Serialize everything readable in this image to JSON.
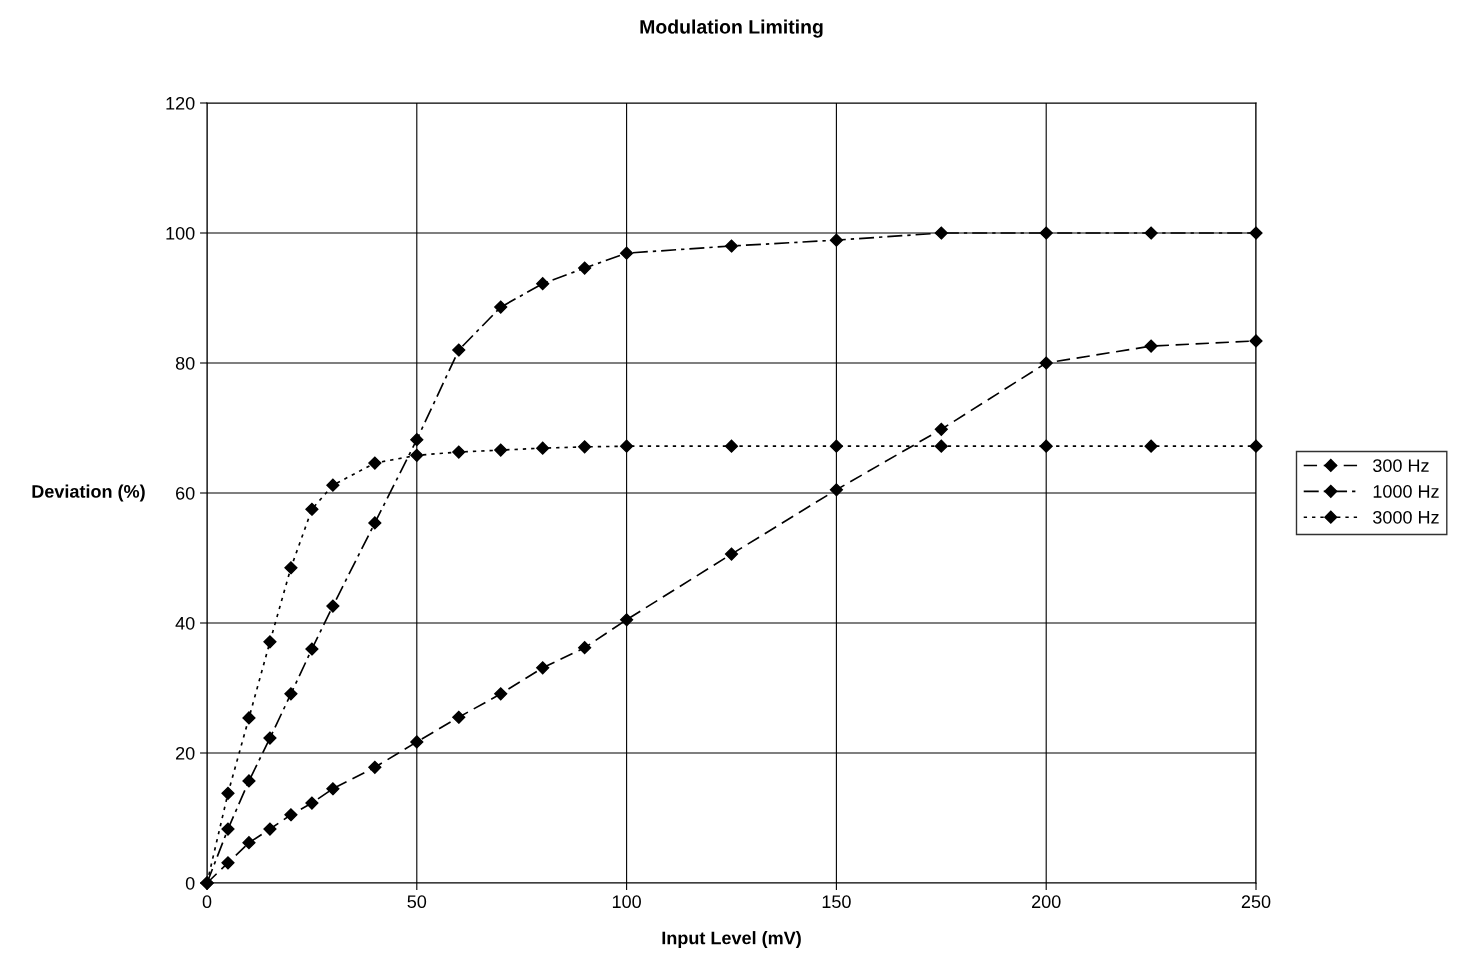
{
  "chart_data": {
    "type": "line",
    "title": "Modulation Limiting",
    "xlabel": "Input Level (mV)",
    "ylabel": "Deviation (%)",
    "x": [
      0,
      5,
      10,
      15,
      20,
      25,
      30,
      40,
      50,
      60,
      70,
      80,
      90,
      100,
      125,
      150,
      175,
      200,
      225,
      250
    ],
    "series": [
      {
        "name": "300 Hz",
        "color": "#000000",
        "line_style": "dashed",
        "values": [
          0,
          3.1,
          6.2,
          8.3,
          10.5,
          12.3,
          14.5,
          17.8,
          21.7,
          25.5,
          29.1,
          33.1,
          36.2,
          40.5,
          50.6,
          60.5,
          69.8,
          80,
          82.6,
          83.4
        ]
      },
      {
        "name": "1000 Hz",
        "color": "#000000",
        "line_style": "dashdot",
        "values": [
          0,
          8.3,
          15.7,
          22.3,
          29.1,
          36,
          42.6,
          55.4,
          68.2,
          82,
          88.6,
          92.2,
          94.6,
          96.9,
          98,
          98.9,
          100,
          100,
          100,
          100
        ]
      },
      {
        "name": "3000 Hz",
        "color": "#000000",
        "line_style": "dotted",
        "values": [
          0,
          13.8,
          25.4,
          37.1,
          48.5,
          57.5,
          61.2,
          64.6,
          65.8,
          66.3,
          66.6,
          66.9,
          67.1,
          67.2,
          67.2,
          67.2,
          67.2,
          67.2,
          67.2,
          67.2
        ]
      }
    ],
    "xlim": [
      0,
      250
    ],
    "xticks": [
      0,
      50,
      100,
      150,
      200,
      250
    ],
    "ylim": [
      0,
      120
    ],
    "yticks": [
      0,
      20,
      40,
      60,
      80,
      100,
      120
    ],
    "grid": true,
    "legend": "right",
    "marker": "diamond"
  }
}
